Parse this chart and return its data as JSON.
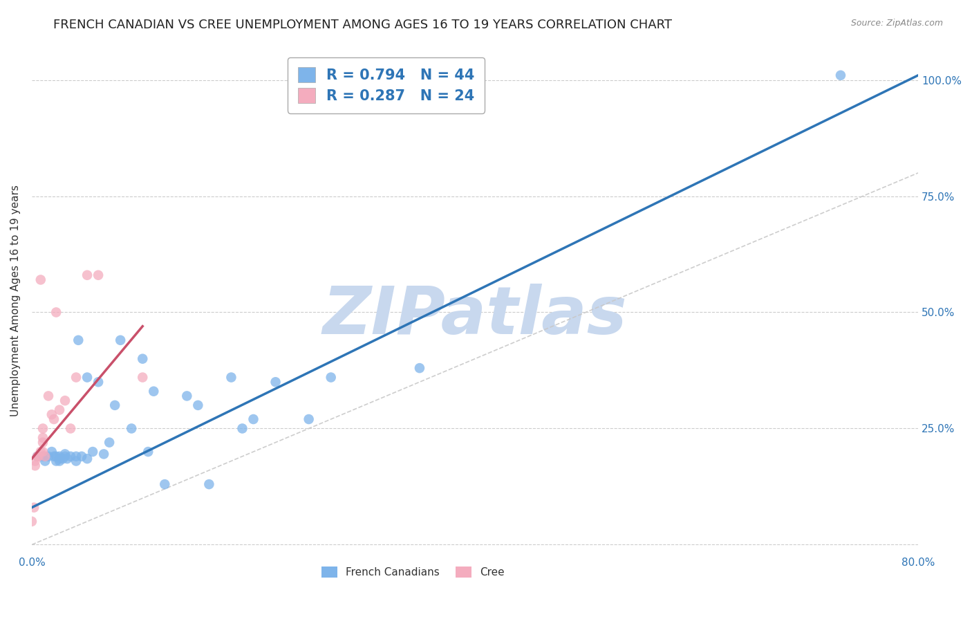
{
  "title": "FRENCH CANADIAN VS CREE UNEMPLOYMENT AMONG AGES 16 TO 19 YEARS CORRELATION CHART",
  "source": "Source: ZipAtlas.com",
  "ylabel": "Unemployment Among Ages 16 to 19 years",
  "x_min": 0.0,
  "x_max": 0.8,
  "y_min": -0.02,
  "y_max": 1.07,
  "x_ticks": [
    0.0,
    0.1,
    0.2,
    0.3,
    0.4,
    0.5,
    0.6,
    0.7,
    0.8
  ],
  "x_tick_labels": [
    "0.0%",
    "",
    "",
    "",
    "",
    "",
    "",
    "",
    "80.0%"
  ],
  "y_ticks": [
    0.0,
    0.25,
    0.5,
    0.75,
    1.0
  ],
  "y_tick_labels_right": [
    "",
    "25.0%",
    "50.0%",
    "75.0%",
    "100.0%"
  ],
  "blue_R": 0.794,
  "blue_N": 44,
  "pink_R": 0.287,
  "pink_N": 24,
  "blue_color": "#7EB4EA",
  "blue_line_color": "#2E75B6",
  "pink_color": "#F4ACBE",
  "pink_line_color": "#C9506A",
  "watermark_color": "#C8D8EE",
  "blue_scatter_x": [
    0.005,
    0.01,
    0.012,
    0.015,
    0.018,
    0.02,
    0.022,
    0.022,
    0.025,
    0.025,
    0.025,
    0.028,
    0.03,
    0.03,
    0.032,
    0.035,
    0.04,
    0.04,
    0.042,
    0.045,
    0.05,
    0.05,
    0.055,
    0.06,
    0.065,
    0.07,
    0.075,
    0.08,
    0.09,
    0.1,
    0.105,
    0.11,
    0.12,
    0.14,
    0.15,
    0.16,
    0.18,
    0.19,
    0.2,
    0.22,
    0.25,
    0.27,
    0.35,
    0.73
  ],
  "blue_scatter_y": [
    0.19,
    0.19,
    0.18,
    0.19,
    0.2,
    0.19,
    0.18,
    0.19,
    0.18,
    0.185,
    0.19,
    0.185,
    0.19,
    0.195,
    0.185,
    0.19,
    0.18,
    0.19,
    0.44,
    0.19,
    0.185,
    0.36,
    0.2,
    0.35,
    0.195,
    0.22,
    0.3,
    0.44,
    0.25,
    0.4,
    0.2,
    0.33,
    0.13,
    0.32,
    0.3,
    0.13,
    0.36,
    0.25,
    0.27,
    0.35,
    0.27,
    0.36,
    0.38,
    1.01
  ],
  "pink_scatter_x": [
    0.0,
    0.002,
    0.003,
    0.003,
    0.005,
    0.006,
    0.008,
    0.008,
    0.01,
    0.01,
    0.01,
    0.01,
    0.012,
    0.015,
    0.018,
    0.02,
    0.022,
    0.025,
    0.03,
    0.035,
    0.04,
    0.05,
    0.06,
    0.1
  ],
  "pink_scatter_y": [
    0.05,
    0.08,
    0.17,
    0.18,
    0.19,
    0.19,
    0.2,
    0.57,
    0.2,
    0.22,
    0.23,
    0.25,
    0.19,
    0.32,
    0.28,
    0.27,
    0.5,
    0.29,
    0.31,
    0.25,
    0.36,
    0.58,
    0.58,
    0.36
  ],
  "blue_line_x": [
    0.0,
    0.8
  ],
  "blue_line_y": [
    0.08,
    1.01
  ],
  "pink_line_x": [
    0.0,
    0.1
  ],
  "pink_line_y": [
    0.185,
    0.47
  ],
  "diag_line_x": [
    0.0,
    0.8
  ],
  "diag_line_y": [
    0.0,
    0.8
  ],
  "title_fontsize": 13,
  "axis_label_fontsize": 11,
  "tick_fontsize": 11,
  "legend_fontsize": 15
}
